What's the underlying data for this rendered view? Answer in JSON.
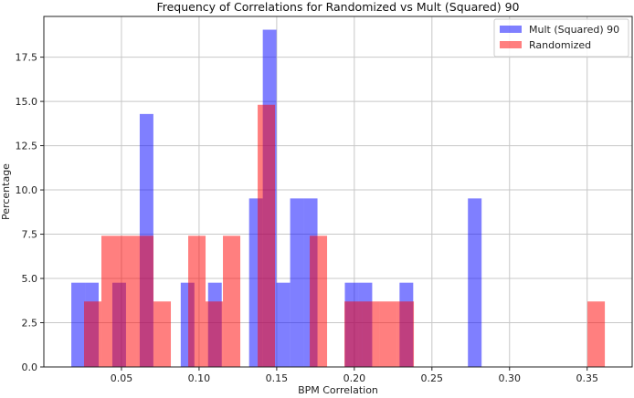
{
  "chart_data": {
    "type": "bar",
    "subtype": "overlapping-histogram",
    "title": "Frequency of Correlations for Randomized vs Mult (Squared) 90",
    "xlabel": "BPM Correlation",
    "ylabel": "Percentage",
    "xlim": [
      0.0,
      0.379
    ],
    "ylim": [
      0,
      19.8
    ],
    "xticks": [
      "0.05",
      "0.10",
      "0.15",
      "0.20",
      "0.25",
      "0.30",
      "0.35"
    ],
    "xtick_values": [
      0.05,
      0.1,
      0.15,
      0.2,
      0.25,
      0.3,
      0.35
    ],
    "yticks": [
      "0.0",
      "2.5",
      "5.0",
      "7.5",
      "10.0",
      "12.5",
      "15.0",
      "17.5"
    ],
    "ytick_values": [
      0,
      2.5,
      5,
      7.5,
      10,
      12.5,
      15,
      17.5
    ],
    "grid": true,
    "legend_position": "top-right",
    "series": [
      {
        "name": "Mult (Squared) 90",
        "color": "#0000ff",
        "alpha": 0.5,
        "bin_start": 0.0177,
        "bin_end": 0.282,
        "values": [
          4.76,
          4.76,
          0,
          4.76,
          0,
          14.29,
          0,
          0,
          4.76,
          0,
          4.76,
          0,
          0,
          9.52,
          19.05,
          4.76,
          9.52,
          9.52,
          0,
          0,
          4.76,
          4.76,
          0,
          0,
          4.76,
          0,
          0,
          0,
          0,
          9.52
        ]
      },
      {
        "name": "Randomized",
        "color": "#ff0000",
        "alpha": 0.5,
        "bin_start": 0.0259,
        "bin_end": 0.3614,
        "values": [
          3.7,
          7.41,
          7.41,
          7.41,
          3.7,
          0,
          7.41,
          3.7,
          7.41,
          0,
          14.81,
          0,
          0,
          7.41,
          0,
          3.7,
          3.7,
          3.7,
          3.7,
          0,
          0,
          0,
          0,
          0,
          0,
          0,
          0,
          0,
          0,
          3.7
        ]
      }
    ]
  }
}
